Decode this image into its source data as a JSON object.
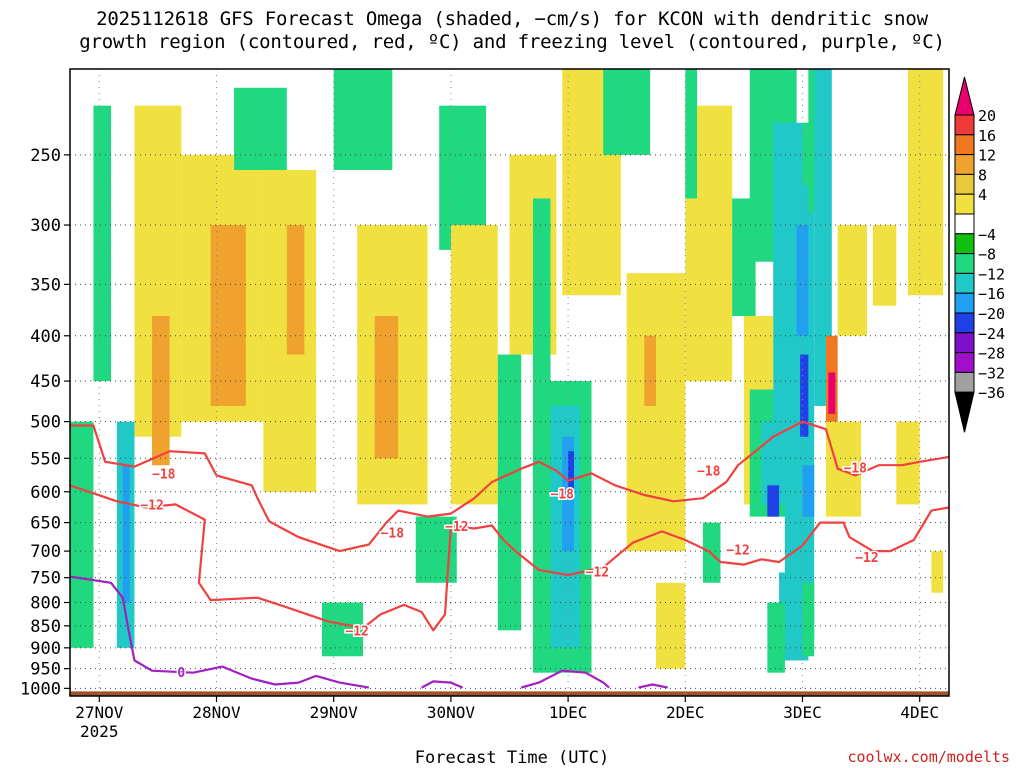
{
  "title": {
    "line1": "2025112618 GFS Forecast Omega (shaded, −cm/s) for KCON with dendritic snow",
    "line2": "growth region (contoured, red, ºC) and freezing level (contoured, purple, ºC)"
  },
  "credit": "coolwx.com/modelts",
  "chart_data": {
    "type": "heatmap",
    "title": "2025112618 GFS Forecast Omega (shaded, −cm/s) for KCON with dendritic snow growth region (contoured, red, ºC) and freezing level (contoured, purple, ºC)",
    "xlabel": "Forecast Time (UTC)",
    "ylabel": "Pressure (hPa)",
    "x_ticks": [
      {
        "day": 0,
        "label": "27NOV",
        "sublabel": "2025"
      },
      {
        "day": 1,
        "label": "28NOV"
      },
      {
        "day": 2,
        "label": "29NOV"
      },
      {
        "day": 3,
        "label": "30NOV"
      },
      {
        "day": 4,
        "label": "1DEC"
      },
      {
        "day": 5,
        "label": "2DEC"
      },
      {
        "day": 6,
        "label": "3DEC"
      },
      {
        "day": 7,
        "label": "4DEC"
      }
    ],
    "xlim_days": [
      -0.25,
      7.25
    ],
    "y_ticks": [
      250,
      300,
      350,
      400,
      450,
      500,
      550,
      600,
      650,
      700,
      750,
      800,
      850,
      900,
      950,
      1000
    ],
    "ylim": [
      1000,
      200
    ],
    "colorbar": {
      "labels": [
        "20",
        "16",
        "12",
        "8",
        "4",
        "−4",
        "−8",
        "−12",
        "−16",
        "−20",
        "−24",
        "−28",
        "−32",
        "−36"
      ],
      "colors": [
        "#e8006e",
        "#f03a3a",
        "#f07820",
        "#f0a22e",
        "#e8c83c",
        "#f0e040",
        "#ffffff",
        "#10c010",
        "#20d880",
        "#20c8c8",
        "#20a0f0",
        "#2040e8",
        "#8010c8",
        "#a010c8",
        "#a0a0a0",
        "#000000"
      ]
    },
    "omega_cells": [
      {
        "d0": -0.25,
        "d1": -0.05,
        "p0": 500,
        "p1": 900,
        "v": -8
      },
      {
        "d0": 0.15,
        "d1": 0.3,
        "p0": 500,
        "p1": 900,
        "v": -12
      },
      {
        "d0": 0.2,
        "d1": 0.26,
        "p0": 560,
        "p1": 800,
        "v": -16
      },
      {
        "d0": -0.05,
        "d1": 0.1,
        "p0": 220,
        "p1": 450,
        "v": -8
      },
      {
        "d0": 0.3,
        "d1": 0.7,
        "p0": 220,
        "p1": 520,
        "v": 6
      },
      {
        "d0": 0.45,
        "d1": 0.6,
        "p0": 380,
        "p1": 560,
        "v": 10
      },
      {
        "d0": 0.7,
        "d1": 1.4,
        "p0": 250,
        "p1": 500,
        "v": 6
      },
      {
        "d0": 0.95,
        "d1": 1.25,
        "p0": 300,
        "p1": 480,
        "v": 10
      },
      {
        "d0": 1.15,
        "d1": 1.6,
        "p0": 210,
        "p1": 260,
        "v": -8
      },
      {
        "d0": 1.4,
        "d1": 1.85,
        "p0": 260,
        "p1": 600,
        "v": 6
      },
      {
        "d0": 1.6,
        "d1": 1.75,
        "p0": 300,
        "p1": 420,
        "v": 10
      },
      {
        "d0": 1.9,
        "d1": 2.25,
        "p0": 800,
        "p1": 920,
        "v": -8
      },
      {
        "d0": 2.0,
        "d1": 2.5,
        "p0": 200,
        "p1": 260,
        "v": -8
      },
      {
        "d0": 2.2,
        "d1": 2.8,
        "p0": 300,
        "p1": 620,
        "v": 6
      },
      {
        "d0": 2.35,
        "d1": 2.55,
        "p0": 380,
        "p1": 550,
        "v": 10
      },
      {
        "d0": 2.7,
        "d1": 3.05,
        "p0": 640,
        "p1": 760,
        "v": -8
      },
      {
        "d0": 2.9,
        "d1": 3.3,
        "p0": 220,
        "p1": 320,
        "v": -8
      },
      {
        "d0": 3.0,
        "d1": 3.4,
        "p0": 300,
        "p1": 620,
        "v": 6
      },
      {
        "d0": 3.4,
        "d1": 3.6,
        "p0": 420,
        "p1": 860,
        "v": -8
      },
      {
        "d0": 3.5,
        "d1": 3.9,
        "p0": 250,
        "p1": 420,
        "v": 6
      },
      {
        "d0": 3.7,
        "d1": 4.2,
        "p0": 450,
        "p1": 960,
        "v": -8
      },
      {
        "d0": 3.85,
        "d1": 4.1,
        "p0": 480,
        "p1": 900,
        "v": -12
      },
      {
        "d0": 3.95,
        "d1": 4.05,
        "p0": 520,
        "p1": 700,
        "v": -16
      },
      {
        "d0": 4.0,
        "d1": 4.05,
        "p0": 540,
        "p1": 600,
        "v": -20
      },
      {
        "d0": 3.7,
        "d1": 3.85,
        "p0": 280,
        "p1": 450,
        "v": -8
      },
      {
        "d0": 4.05,
        "d1": 4.2,
        "p0": 220,
        "p1": 260,
        "v": 12
      },
      {
        "d0": 4.05,
        "d1": 4.1,
        "p0": 200,
        "p1": 230,
        "v": 20
      },
      {
        "d0": 3.95,
        "d1": 4.45,
        "p0": 200,
        "p1": 360,
        "v": 6
      },
      {
        "d0": 4.3,
        "d1": 4.7,
        "p0": 200,
        "p1": 250,
        "v": -8
      },
      {
        "d0": 4.5,
        "d1": 5.0,
        "p0": 340,
        "p1": 700,
        "v": 6
      },
      {
        "d0": 4.65,
        "d1": 4.75,
        "p0": 400,
        "p1": 480,
        "v": 10
      },
      {
        "d0": 4.75,
        "d1": 5.0,
        "p0": 760,
        "p1": 950,
        "v": 6
      },
      {
        "d0": 5.0,
        "d1": 5.4,
        "p0": 220,
        "p1": 450,
        "v": 6
      },
      {
        "d0": 5.0,
        "d1": 5.1,
        "p0": 200,
        "p1": 280,
        "v": -8
      },
      {
        "d0": 5.15,
        "d1": 5.3,
        "p0": 650,
        "p1": 760,
        "v": -8
      },
      {
        "d0": 5.4,
        "d1": 5.6,
        "p0": 280,
        "p1": 380,
        "v": -8
      },
      {
        "d0": 5.5,
        "d1": 5.75,
        "p0": 380,
        "p1": 620,
        "v": 6
      },
      {
        "d0": 5.55,
        "d1": 5.95,
        "p0": 200,
        "p1": 330,
        "v": -8
      },
      {
        "d0": 5.55,
        "d1": 5.95,
        "p0": 460,
        "p1": 640,
        "v": -8
      },
      {
        "d0": 5.65,
        "d1": 5.85,
        "p0": 500,
        "p1": 620,
        "v": -12
      },
      {
        "d0": 5.7,
        "d1": 5.8,
        "p0": 590,
        "p1": 640,
        "v": -20
      },
      {
        "d0": 5.75,
        "d1": 6.0,
        "p0": 230,
        "p1": 520,
        "v": -12
      },
      {
        "d0": 5.85,
        "d1": 6.1,
        "p0": 270,
        "p1": 880,
        "v": -12
      },
      {
        "d0": 5.95,
        "d1": 6.05,
        "p0": 300,
        "p1": 400,
        "v": -16
      },
      {
        "d0": 5.98,
        "d1": 6.05,
        "p0": 420,
        "p1": 520,
        "v": -20
      },
      {
        "d0": 6.0,
        "d1": 6.1,
        "p0": 560,
        "p1": 640,
        "v": -16
      },
      {
        "d0": 6.0,
        "d1": 6.15,
        "p0": 230,
        "p1": 270,
        "v": -8
      },
      {
        "d0": 6.05,
        "d1": 6.2,
        "p0": 200,
        "p1": 290,
        "v": -8
      },
      {
        "d0": 5.8,
        "d1": 6.05,
        "p0": 740,
        "p1": 930,
        "v": -12
      },
      {
        "d0": 5.7,
        "d1": 5.85,
        "p0": 800,
        "p1": 960,
        "v": -8
      },
      {
        "d0": 6.0,
        "d1": 6.1,
        "p0": 760,
        "p1": 920,
        "v": -8
      },
      {
        "d0": 6.1,
        "d1": 6.25,
        "p0": 200,
        "p1": 480,
        "v": -12
      },
      {
        "d0": 6.2,
        "d1": 6.3,
        "p0": 400,
        "p1": 520,
        "v": 12
      },
      {
        "d0": 6.22,
        "d1": 6.28,
        "p0": 440,
        "p1": 490,
        "v": 20
      },
      {
        "d0": 6.2,
        "d1": 6.5,
        "p0": 500,
        "p1": 640,
        "v": 6
      },
      {
        "d0": 6.3,
        "d1": 6.55,
        "p0": 300,
        "p1": 400,
        "v": 6
      },
      {
        "d0": 6.6,
        "d1": 6.8,
        "p0": 300,
        "p1": 370,
        "v": 6
      },
      {
        "d0": 6.8,
        "d1": 7.0,
        "p0": 500,
        "p1": 620,
        "v": 6
      },
      {
        "d0": 6.9,
        "d1": 7.2,
        "p0": 200,
        "p1": 360,
        "v": 6
      },
      {
        "d0": 7.0,
        "d1": 7.2,
        "p0": 240,
        "p1": 320,
        "v": 6
      },
      {
        "d0": 7.1,
        "d1": 7.2,
        "p0": 700,
        "p1": 780,
        "v": 6
      }
    ],
    "contours": [
      {
        "name": "-18",
        "color": "#f04040",
        "points": [
          [
            -0.25,
            505
          ],
          [
            -0.05,
            505
          ],
          [
            0.05,
            555
          ],
          [
            0.3,
            562
          ],
          [
            0.6,
            540
          ],
          [
            0.9,
            543
          ],
          [
            1.0,
            575
          ],
          [
            1.3,
            590
          ],
          [
            1.35,
            610
          ],
          [
            1.45,
            648
          ],
          [
            1.7,
            675
          ],
          [
            2.05,
            700
          ],
          [
            2.3,
            688
          ],
          [
            2.45,
            650
          ],
          [
            2.55,
            630
          ],
          [
            2.8,
            640
          ],
          [
            3.0,
            635
          ],
          [
            3.2,
            610
          ],
          [
            3.35,
            585
          ],
          [
            3.6,
            565
          ],
          [
            3.75,
            555
          ],
          [
            3.9,
            568
          ],
          [
            4.0,
            583
          ],
          [
            4.2,
            572
          ],
          [
            4.4,
            590
          ],
          [
            4.65,
            605
          ],
          [
            4.9,
            615
          ],
          [
            5.15,
            610
          ],
          [
            5.35,
            585
          ],
          [
            5.45,
            560
          ],
          [
            5.6,
            540
          ],
          [
            5.75,
            520
          ],
          [
            6.0,
            500
          ],
          [
            6.2,
            510
          ],
          [
            6.3,
            565
          ],
          [
            6.45,
            575
          ],
          [
            6.65,
            560
          ],
          [
            6.85,
            560
          ],
          [
            7.0,
            555
          ],
          [
            7.25,
            548
          ]
        ]
      },
      {
        "name": "-12",
        "color": "#f04040",
        "points": [
          [
            -0.25,
            590
          ],
          [
            0.15,
            615
          ],
          [
            0.4,
            625
          ],
          [
            0.65,
            620
          ],
          [
            0.9,
            645
          ],
          [
            0.85,
            760
          ],
          [
            0.95,
            795
          ],
          [
            1.35,
            790
          ],
          [
            1.6,
            810
          ],
          [
            1.95,
            840
          ],
          [
            2.25,
            855
          ],
          [
            2.4,
            825
          ],
          [
            2.6,
            805
          ],
          [
            2.75,
            820
          ],
          [
            2.85,
            860
          ],
          [
            2.95,
            825
          ],
          [
            3.0,
            655
          ],
          [
            3.2,
            660
          ],
          [
            3.35,
            655
          ],
          [
            3.45,
            680
          ],
          [
            3.55,
            700
          ],
          [
            3.75,
            735
          ],
          [
            4.0,
            745
          ],
          [
            4.3,
            730
          ],
          [
            4.55,
            685
          ],
          [
            4.8,
            665
          ],
          [
            5.0,
            680
          ],
          [
            5.2,
            700
          ],
          [
            5.3,
            720
          ],
          [
            5.5,
            725
          ],
          [
            5.65,
            715
          ],
          [
            5.8,
            720
          ],
          [
            6.0,
            690
          ],
          [
            6.15,
            650
          ],
          [
            6.35,
            650
          ],
          [
            6.4,
            675
          ],
          [
            6.6,
            700
          ],
          [
            6.75,
            700
          ],
          [
            6.95,
            680
          ],
          [
            7.1,
            630
          ],
          [
            7.25,
            625
          ]
        ]
      },
      {
        "name": "0",
        "color": "#a020c0",
        "points": [
          [
            -0.25,
            748
          ],
          [
            0.1,
            760
          ],
          [
            0.2,
            790
          ],
          [
            0.25,
            860
          ],
          [
            0.3,
            930
          ],
          [
            0.45,
            955
          ],
          [
            0.8,
            960
          ],
          [
            1.05,
            945
          ],
          [
            1.3,
            975
          ],
          [
            1.5,
            990
          ],
          [
            1.7,
            985
          ],
          [
            1.85,
            968
          ],
          [
            2.05,
            985
          ],
          [
            2.3,
            998
          ]
        ]
      },
      {
        "name": "0b",
        "color": "#a020c0",
        "points": [
          [
            2.75,
            998
          ],
          [
            2.85,
            982
          ],
          [
            3.0,
            985
          ],
          [
            3.1,
            998
          ]
        ]
      },
      {
        "name": "0c",
        "color": "#a020c0",
        "points": [
          [
            3.6,
            998
          ],
          [
            3.75,
            985
          ],
          [
            3.95,
            955
          ],
          [
            4.15,
            960
          ],
          [
            4.3,
            985
          ],
          [
            4.35,
            998
          ]
        ]
      },
      {
        "name": "0d",
        "color": "#a020c0",
        "points": [
          [
            4.6,
            998
          ],
          [
            4.72,
            990
          ],
          [
            4.85,
            998
          ]
        ]
      }
    ],
    "contour_labels": [
      {
        "text": "−18",
        "day": 0.55,
        "p": 572
      },
      {
        "text": "−12",
        "day": 0.45,
        "p": 620
      },
      {
        "text": "−18",
        "day": 2.5,
        "p": 667
      },
      {
        "text": "−12",
        "day": 3.05,
        "p": 656
      },
      {
        "text": "−12",
        "day": 2.2,
        "p": 860
      },
      {
        "text": "−18",
        "day": 3.95,
        "p": 603
      },
      {
        "text": "−12",
        "day": 4.25,
        "p": 738
      },
      {
        "text": "−18",
        "day": 5.2,
        "p": 568
      },
      {
        "text": "−12",
        "day": 5.45,
        "p": 697
      },
      {
        "text": "−18",
        "day": 6.45,
        "p": 563
      },
      {
        "text": "−12",
        "day": 6.55,
        "p": 711
      },
      {
        "text": "0",
        "day": 0.7,
        "p": 958
      }
    ]
  }
}
